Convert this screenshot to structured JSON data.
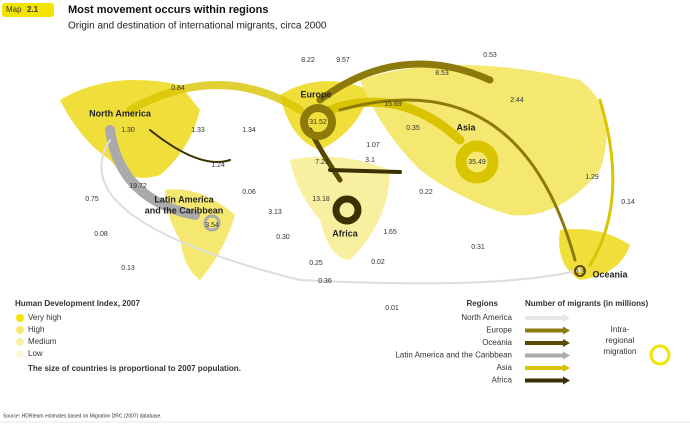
{
  "header": {
    "map_label": "Map",
    "map_number": "2.1",
    "title": "Most movement occurs within regions",
    "subtitle": "Origin and destination of international migrants, circa 2000"
  },
  "regions": [
    {
      "name": "North America",
      "intra": "1.30"
    },
    {
      "name": "Europe",
      "intra": "31.52"
    },
    {
      "name": "Asia",
      "intra": "35.49"
    },
    {
      "name_lines": [
        "Latin America",
        "and the Caribbean"
      ],
      "intra": "3.54"
    },
    {
      "name": "Africa"
    },
    {
      "name": "Oceania",
      "intra": "1.3"
    }
  ],
  "flow_labels": [
    "0.84",
    "8.22",
    "9.57",
    "0.53",
    "8.53",
    "2.44",
    "15.69",
    "1.33",
    "1.34",
    "0.35",
    "1.07",
    "7.25",
    "3.1",
    "1.24",
    "19.72",
    "0.06",
    "0.22",
    "1.29",
    "0.14",
    "0.75",
    "13.18",
    "3.13",
    "0.08",
    "0.30",
    "1.65",
    "0.31",
    "0.25",
    "0.02",
    "0.13",
    "0.36",
    "0.01"
  ],
  "hdi_legend": {
    "title": "Human Development Index, 2007",
    "levels": [
      "Very high",
      "High",
      "Medium",
      "Low"
    ],
    "note": "The size of countries is proportional to 2007 population."
  },
  "regions_legend": {
    "title": "Regions",
    "items": [
      "North America",
      "Europe",
      "Oceania",
      "Latin America and the Caribbean",
      "Asia",
      "Africa"
    ]
  },
  "migrants_legend": {
    "title": "Number of migrants (in millions)",
    "intra_lines": [
      "Intra-",
      "regional",
      "migration"
    ]
  },
  "source": "Source: HDRteam estimates based on Migration DRC (2007) database."
}
